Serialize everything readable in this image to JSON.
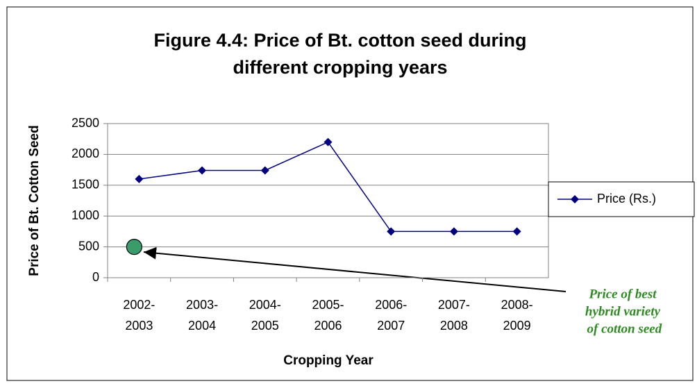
{
  "chart_data": {
    "type": "line",
    "title": [
      "Figure 4.4:  Price of Bt. cotton seed  during",
      "different cropping years"
    ],
    "x_label": "Cropping Year",
    "y_label": "Price of Bt. Cotton Seed",
    "categories": [
      [
        "2002-",
        "2003"
      ],
      [
        "2003-",
        "2004"
      ],
      [
        "2004-",
        "2005"
      ],
      [
        "2005-",
        "2006"
      ],
      [
        "2006-",
        "2007"
      ],
      [
        "2007-",
        "2008"
      ],
      [
        "2008-",
        "2009"
      ]
    ],
    "series": [
      {
        "name": "Price (Rs.)",
        "color": "#000080",
        "values": [
          1600,
          1740,
          1740,
          2200,
          750,
          750,
          750
        ]
      }
    ],
    "ylim": [
      0,
      2500
    ],
    "yticks": [
      0,
      500,
      1000,
      1500,
      2000,
      2500
    ],
    "grid": true,
    "legend": "right",
    "annotation": {
      "text": [
        "Price of best",
        "hybrid variety",
        " of cotton seed"
      ],
      "value": 500,
      "color": "#3a9b6b"
    }
  }
}
